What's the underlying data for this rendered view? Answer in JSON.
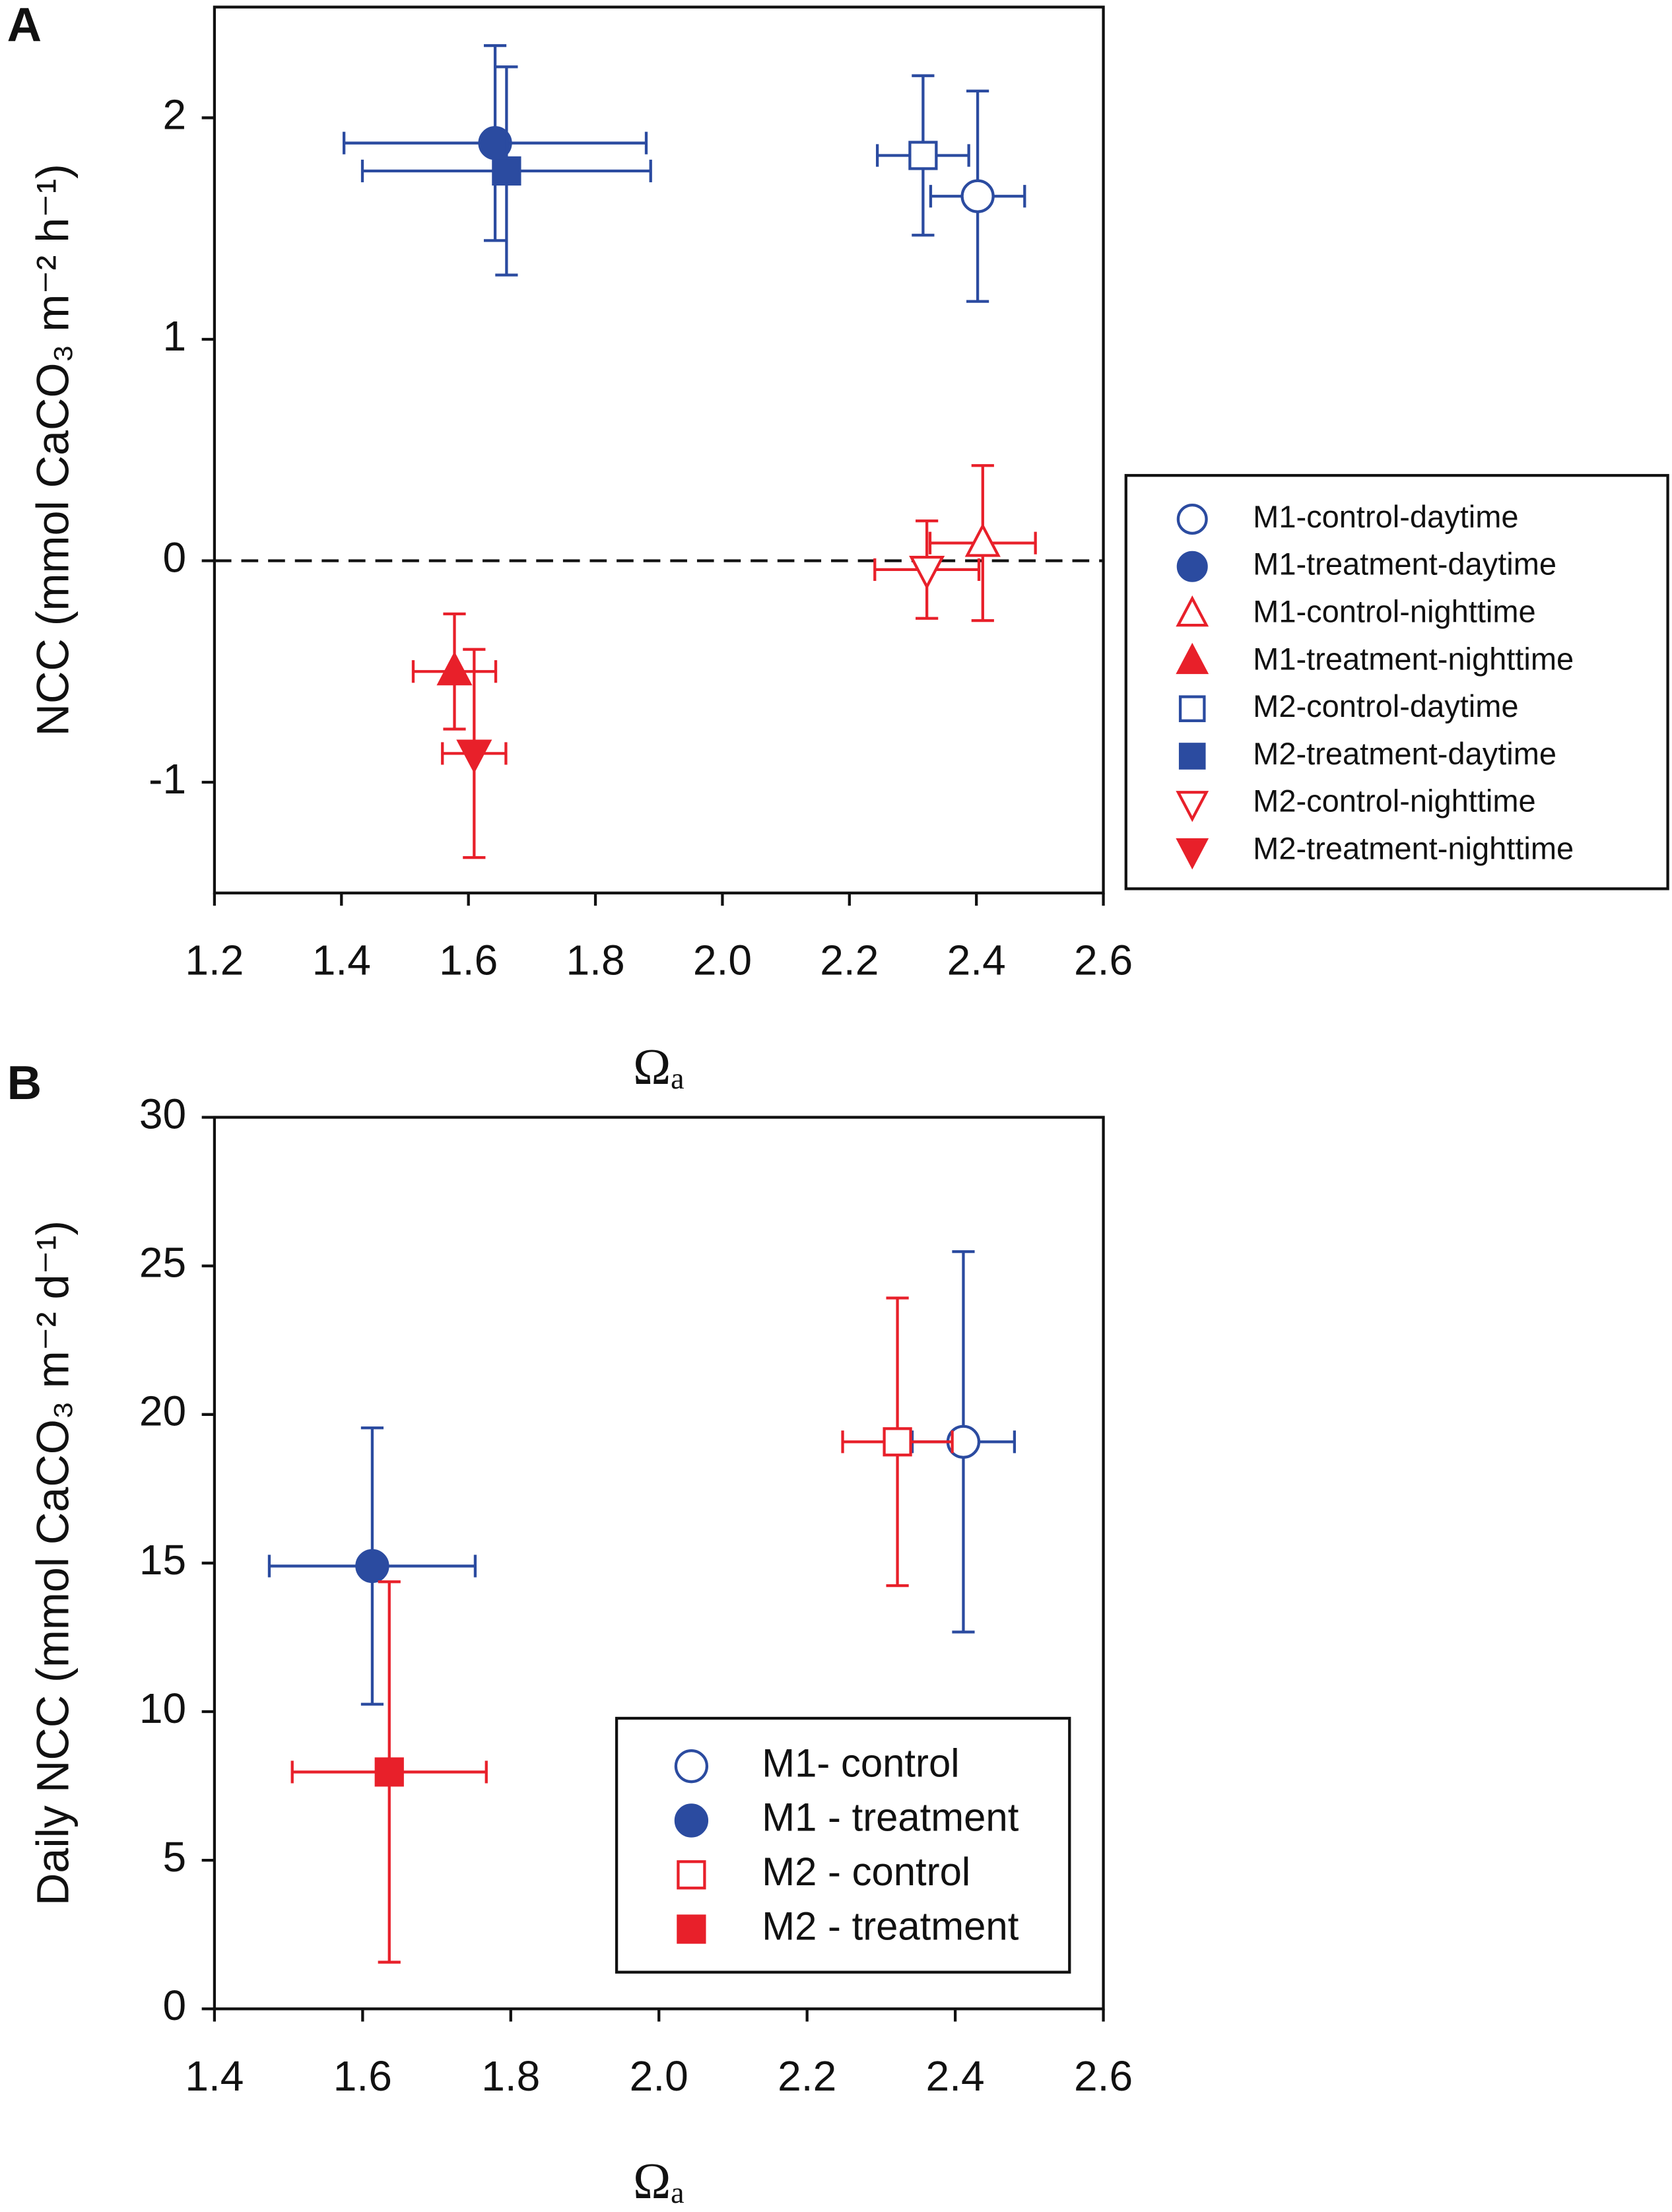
{
  "chart_data": [
    {
      "type": "scatter",
      "panel": "A",
      "x_label": "Ωₐ",
      "y_label": "NCC (mmol CaCO₃ m⁻² h⁻¹)",
      "xlim": [
        1.2,
        2.6
      ],
      "xticks": [
        1.2,
        1.4,
        1.6,
        1.8,
        {
          "value": 2,
          "label": "2.0"
        },
        2.2,
        2.4,
        2.6
      ],
      "ylim": [
        -1.5,
        2.5
      ],
      "yticks": [
        -1,
        0,
        1,
        2
      ],
      "hline": 0,
      "series": [
        {
          "name": "M1-control-daytime",
          "color": "#2b4ba0",
          "marker": "circle",
          "filled": false,
          "x": [
            2.402
          ],
          "values": [
            1.646
          ],
          "xerr": [
            0.074
          ],
          "yerr": [
            0.475
          ]
        },
        {
          "name": "M1-treatment-daytime",
          "color": "#2b4ba0",
          "marker": "circle",
          "filled": true,
          "x": [
            1.642
          ],
          "values": [
            1.886
          ],
          "xerr": [
            0.238
          ],
          "yerr": [
            0.44
          ]
        },
        {
          "name": "M1-control-nighttime",
          "color": "#e8202a",
          "marker": "triangle-up",
          "filled": false,
          "x": [
            2.41
          ],
          "values": [
            0.08
          ],
          "xerr": [
            0.083
          ],
          "yerr": [
            0.35
          ]
        },
        {
          "name": "M1-treatment-nighttime",
          "color": "#e8202a",
          "marker": "triangle-up",
          "filled": true,
          "x": [
            1.578
          ],
          "values": [
            -0.5
          ],
          "xerr": [
            0.065
          ],
          "yerr": [
            0.26
          ]
        },
        {
          "name": "M2-control-daytime",
          "color": "#2b4ba0",
          "marker": "square",
          "filled": false,
          "x": [
            2.316
          ],
          "values": [
            1.83
          ],
          "xerr": [
            0.072
          ],
          "yerr": [
            0.36
          ]
        },
        {
          "name": "M2-treatment-daytime",
          "color": "#2b4ba0",
          "marker": "square",
          "filled": true,
          "x": [
            1.66
          ],
          "values": [
            1.76
          ],
          "xerr": [
            0.227
          ],
          "yerr": [
            0.47
          ]
        },
        {
          "name": "M2-control-nighttime",
          "color": "#e8202a",
          "marker": "triangle-down",
          "filled": false,
          "x": [
            2.322
          ],
          "values": [
            -0.04
          ],
          "xerr": [
            0.082
          ],
          "yerr": [
            0.22
          ]
        },
        {
          "name": "M2-treatment-nighttime",
          "color": "#e8202a",
          "marker": "triangle-down",
          "filled": true,
          "x": [
            1.609
          ],
          "values": [
            -0.87
          ],
          "xerr": [
            0.05
          ],
          "yerr": [
            0.47
          ]
        }
      ]
    },
    {
      "type": "scatter",
      "panel": "B",
      "x_label": "Ωₐ",
      "y_label": "Daily NCC (mmol CaCO₃ m⁻² d⁻¹)",
      "xlim": [
        1.4,
        2.6
      ],
      "xticks": [
        1.4,
        1.6,
        1.8,
        {
          "value": 2,
          "label": "2.0"
        },
        2.2,
        2.4,
        2.6
      ],
      "ylim": [
        0,
        30
      ],
      "yticks": [
        0,
        5,
        10,
        15,
        20,
        25,
        30
      ],
      "series": [
        {
          "name": "M1- control",
          "color": "#2b4ba0",
          "marker": "circle",
          "filled": false,
          "x": [
            2.411
          ],
          "values": [
            19.08
          ],
          "xerr": [
            0.069
          ],
          "yerr": [
            6.4
          ]
        },
        {
          "name": "M1 - treatment",
          "color": "#2b4ba0",
          "marker": "circle",
          "filled": true,
          "x": [
            1.613
          ],
          "values": [
            14.9
          ],
          "xerr": [
            0.139
          ],
          "yerr": [
            4.65
          ]
        },
        {
          "name": "M2 - control",
          "color": "#e8202a",
          "marker": "square",
          "filled": false,
          "x": [
            2.322
          ],
          "values": [
            19.08
          ],
          "xerr": [
            0.074
          ],
          "yerr": [
            4.84
          ]
        },
        {
          "name": "M2 - treatment",
          "color": "#e8202a",
          "marker": "square",
          "filled": true,
          "x": [
            1.636
          ],
          "values": [
            7.97
          ],
          "xerr": [
            0.131
          ],
          "yerr": [
            6.4
          ]
        }
      ]
    }
  ]
}
